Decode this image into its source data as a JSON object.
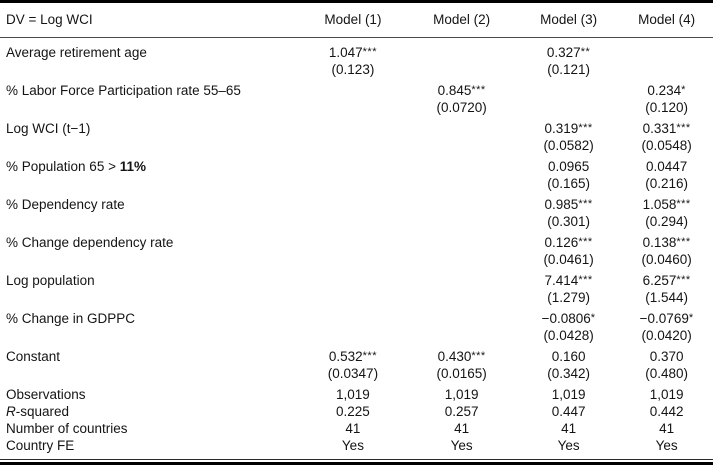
{
  "table": {
    "dv_label": "DV = Log WCI",
    "model_headers": [
      "Model (1)",
      "Model (2)",
      "Model (3)",
      "Model (4)"
    ],
    "coefficient_rows": [
      {
        "label": "Average retirement age",
        "cells": [
          {
            "coef": "1.047***",
            "se": "(0.123)"
          },
          null,
          {
            "coef": "0.327**",
            "se": "(0.121)"
          },
          null
        ]
      },
      {
        "label": "% Labor Force Participation rate 55–65",
        "cells": [
          null,
          {
            "coef": "0.845***",
            "se": "(0.0720)"
          },
          null,
          {
            "coef": "0.234*",
            "se": "(0.120)"
          }
        ]
      },
      {
        "label": "Log WCI (t−1)",
        "cells": [
          null,
          null,
          {
            "coef": "0.319***",
            "se": "(0.0582)"
          },
          {
            "coef": "0.331***",
            "se": "(0.0548)"
          }
        ]
      },
      {
        "label_segments": [
          {
            "t": "% Population 65 > "
          },
          {
            "t": "11%",
            "b": true
          }
        ],
        "cells": [
          null,
          null,
          {
            "coef": "0.0965",
            "se": "(0.165)"
          },
          {
            "coef": "0.0447",
            "se": "(0.216)"
          }
        ]
      },
      {
        "label": "% Dependency rate",
        "cells": [
          null,
          null,
          {
            "coef": "0.985***",
            "se": "(0.301)"
          },
          {
            "coef": "1.058***",
            "se": "(0.294)"
          }
        ]
      },
      {
        "label": "% Change dependency rate",
        "cells": [
          null,
          null,
          {
            "coef": "0.126***",
            "se": "(0.0461)"
          },
          {
            "coef": "0.138***",
            "se": "(0.0460)"
          }
        ]
      },
      {
        "label": "Log population",
        "cells": [
          null,
          null,
          {
            "coef": "7.414***",
            "se": "(1.279)"
          },
          {
            "coef": "6.257***",
            "se": "(1.544)"
          }
        ]
      },
      {
        "label": "% Change in GDPPC",
        "cells": [
          null,
          null,
          {
            "coef": "−0.0806*",
            "se": "(0.0428)"
          },
          {
            "coef": "−0.0769*",
            "se": "(0.0420)"
          }
        ]
      },
      {
        "label": "Constant",
        "cells": [
          {
            "coef": "0.532***",
            "se": "(0.0347)"
          },
          {
            "coef": "0.430***",
            "se": "(0.0165)"
          },
          {
            "coef": "0.160",
            "se": "(0.342)"
          },
          {
            "coef": "0.370",
            "se": "(0.480)"
          }
        ]
      }
    ],
    "stat_rows": [
      {
        "label": "Observations",
        "values": [
          "1,019",
          "1,019",
          "1,019",
          "1,019"
        ]
      },
      {
        "label_segments": [
          {
            "t": "R",
            "i": true
          },
          {
            "t": "-squared"
          }
        ],
        "values": [
          "0.225",
          "0.257",
          "0.447",
          "0.442"
        ]
      },
      {
        "label": "Number of countries",
        "values": [
          "41",
          "41",
          "41",
          "41"
        ]
      },
      {
        "label": "Country FE",
        "values": [
          "Yes",
          "Yes",
          "Yes",
          "Yes"
        ]
      }
    ]
  },
  "colors": {
    "text": "#141414",
    "top_rule": "#000000",
    "header_rule": "#4a4a4a",
    "bottom_rule_thin": "#2a2a2a",
    "bottom_rule_thick": "#000000",
    "background": "#ffffff"
  }
}
